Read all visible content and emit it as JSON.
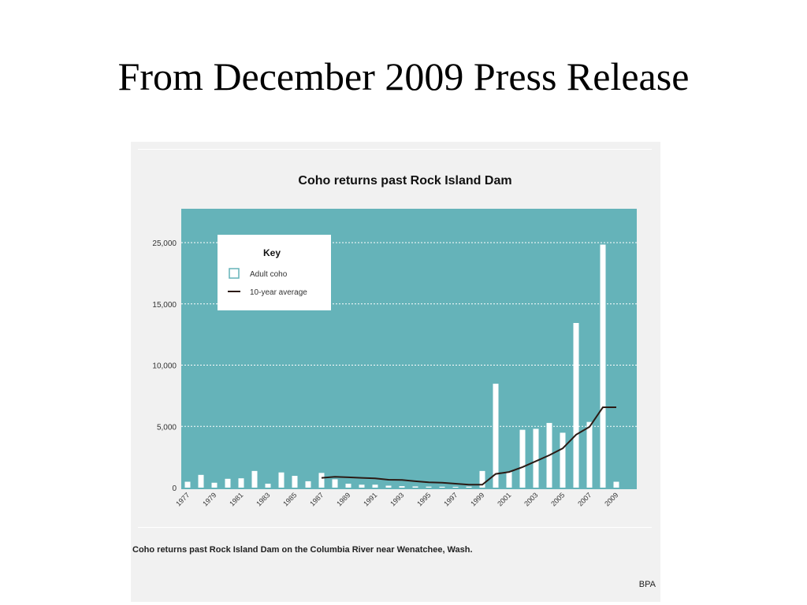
{
  "slide": {
    "title": "From December 2009 Press Release"
  },
  "figure": {
    "caption": "Coho returns past Rock Island Dam on the Columbia River near Wenatchee, Wash.",
    "credit": "BPA"
  },
  "colors": {
    "plot_background": "#65b3b9",
    "bar_fill": "#ffffff",
    "line": "#2b1a14",
    "gridline": "#ffffff"
  },
  "chart_data": {
    "type": "bar",
    "title": "Coho returns past Rock Island Dam",
    "xlabel": "",
    "ylabel": "",
    "x_tick_labels": [
      "1977",
      "1979",
      "1981",
      "1983",
      "1985",
      "1987",
      "1989",
      "1991",
      "1993",
      "1995",
      "1997",
      "1999",
      "2001",
      "2003",
      "2005",
      "2007",
      "2009"
    ],
    "y_tick_labels": [
      "25,000",
      "15,000",
      "10,000",
      "5,000",
      "0"
    ],
    "ylim": [
      0,
      27000
    ],
    "grid": true,
    "legend": {
      "title": "Key",
      "position": "top-left",
      "entries": [
        "Adult coho",
        "10-year average"
      ]
    },
    "categories": [
      1977,
      1978,
      1979,
      1980,
      1981,
      1982,
      1983,
      1984,
      1985,
      1986,
      1987,
      1988,
      1989,
      1990,
      1991,
      1992,
      1993,
      1994,
      1995,
      1996,
      1997,
      1998,
      1999,
      2000,
      2001,
      2002,
      2003,
      2004,
      2005,
      2006,
      2007,
      2008,
      2009
    ],
    "series": [
      {
        "name": "Adult coho",
        "kind": "bar",
        "values": [
          600,
          1300,
          500,
          900,
          950,
          1700,
          400,
          1550,
          1200,
          650,
          1500,
          850,
          400,
          300,
          300,
          200,
          150,
          120,
          100,
          90,
          80,
          100,
          1700,
          10600,
          1600,
          5900,
          6000,
          6600,
          5600,
          16800,
          6700,
          24800,
          600
        ]
      },
      {
        "name": "10-year average",
        "kind": "line",
        "x": [
          1987,
          1988,
          1989,
          1990,
          1991,
          1992,
          1993,
          1994,
          1995,
          1996,
          1997,
          1998,
          1999,
          2000,
          2001,
          2002,
          2003,
          2004,
          2005,
          2006,
          2007,
          2008,
          2009
        ],
        "values": [
          1000,
          1100,
          1050,
          1000,
          950,
          800,
          780,
          650,
          550,
          500,
          400,
          300,
          300,
          1400,
          1600,
          2100,
          2700,
          3300,
          4000,
          5400,
          6200,
          8200,
          8200
        ]
      }
    ]
  }
}
